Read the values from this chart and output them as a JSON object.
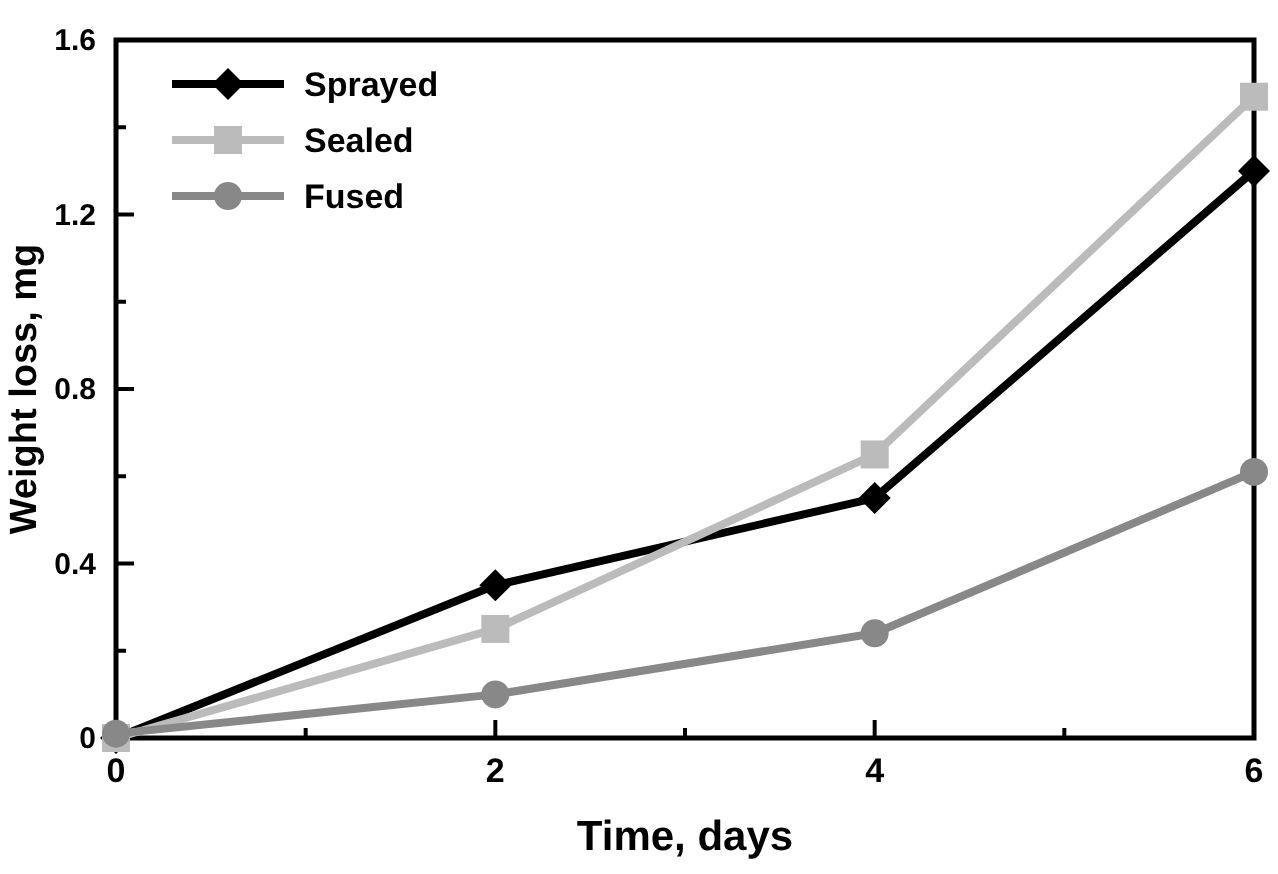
{
  "chart_data": {
    "type": "line",
    "xlabel": "Time, days",
    "ylabel": "Weight loss, mg",
    "x": [
      0,
      2,
      4,
      6
    ],
    "series": [
      {
        "name": "Sprayed",
        "color": "#000000",
        "marker": "diamond",
        "values": [
          0,
          0.35,
          0.55,
          1.3
        ]
      },
      {
        "name": "Sealed",
        "color": "#bbbbbb",
        "marker": "square",
        "values": [
          0,
          0.25,
          0.65,
          1.47
        ]
      },
      {
        "name": "Fused",
        "color": "#888888",
        "marker": "circle",
        "values": [
          0.01,
          0.1,
          0.24,
          0.61
        ]
      }
    ],
    "xlim": [
      0,
      6
    ],
    "ylim": [
      0,
      1.6
    ],
    "xticks": [
      0,
      {
        "value": 1,
        "label": null
      },
      2,
      {
        "value": 3,
        "label": null
      },
      4,
      {
        "value": 5,
        "label": null
      },
      6
    ],
    "yticks": [
      0,
      {
        "value": 0.2,
        "label": null
      },
      0.4,
      {
        "value": 0.6,
        "label": null
      },
      0.8,
      {
        "value": 1,
        "label": null
      },
      1.2,
      {
        "value": 1.4,
        "label": null
      },
      1.6
    ],
    "legend": "top left",
    "grid": false,
    "line_style": "solid"
  }
}
